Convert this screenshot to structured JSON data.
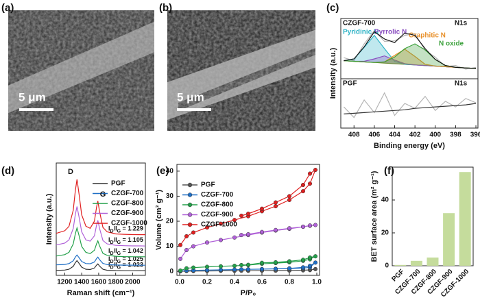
{
  "panels": [
    {
      "label": "(a)",
      "scale_bar": "5 μm"
    },
    {
      "label": "(b)",
      "scale_bar": "5 μm"
    }
  ],
  "chart_data": [
    {
      "type": "line",
      "panel": "(c)",
      "sample": "CZGF-700",
      "region": "N1s",
      "ylabel": "Intensity (a.u.)",
      "x": [
        409,
        408,
        407,
        406,
        405,
        404,
        403,
        402,
        401,
        400,
        399,
        398,
        397,
        396
      ],
      "xlim": [
        409.3,
        395.8
      ],
      "ylim": [
        0,
        100
      ],
      "series": [
        {
          "color": "#b5b5b5",
          "values": [
            35,
            30,
            58,
            80,
            62,
            63,
            72,
            75,
            47,
            36,
            20,
            22,
            16,
            19
          ]
        },
        {
          "color": "#6b8e23",
          "values": [
            30,
            29,
            28,
            27,
            26,
            25,
            24,
            23,
            22,
            21,
            20,
            19,
            18,
            17
          ]
        },
        {
          "name": "Pyridinic N",
          "color": "#2fb3c6",
          "fill": true,
          "values": [
            30,
            33,
            52,
            72,
            50,
            29,
            24,
            23,
            22,
            21,
            20,
            19,
            18,
            17
          ]
        },
        {
          "name": "Pyrrolic N",
          "color": "#8a4fc0",
          "fill": true,
          "values": [
            30,
            29,
            29,
            33,
            38,
            31,
            25,
            23,
            22,
            21,
            20,
            19,
            18,
            17
          ]
        },
        {
          "name": "Graphitic N",
          "color": "#e8902a",
          "fill": true,
          "values": [
            30,
            29,
            28,
            27,
            28,
            39,
            49,
            37,
            24,
            21,
            20,
            19,
            18,
            17
          ]
        },
        {
          "name": "N oxide",
          "color": "#3aa03a",
          "fill": true,
          "values": [
            30,
            29,
            28,
            27,
            28,
            36,
            50,
            58,
            48,
            32,
            22,
            19,
            18,
            17
          ]
        },
        {
          "color": "#111111",
          "values": [
            30,
            33,
            53,
            78,
            66,
            60,
            76,
            72,
            50,
            32,
            22,
            19,
            18,
            17
          ]
        }
      ]
    },
    {
      "type": "line",
      "sample": "PGF",
      "region": "N1s",
      "xlabel": "Binding energy (eV)",
      "x": [
        409,
        408,
        407,
        406,
        405,
        404,
        403,
        402,
        401,
        400,
        399,
        398,
        397,
        396
      ],
      "xlim": [
        409.3,
        395.8
      ],
      "ylim": [
        0,
        70
      ],
      "xticks": [
        408,
        406,
        404,
        402,
        400,
        398,
        396
      ],
      "series": [
        {
          "color": "#b5b5b5",
          "values": [
            30,
            15,
            40,
            22,
            50,
            18,
            35,
            28,
            45,
            25,
            38,
            30,
            42,
            36
          ]
        },
        {
          "color": "#333333",
          "values": [
            20,
            21,
            22,
            23,
            24,
            25,
            26,
            28,
            29,
            30,
            31,
            32,
            33,
            35
          ]
        }
      ]
    },
    {
      "type": "line",
      "panel": "(d)",
      "xlabel": "Raman shift (cm⁻¹)",
      "ylabel": "Intensity (a.u.)",
      "legend": "upper right",
      "annotations": [
        "D",
        "G"
      ],
      "x": [
        1100,
        1200,
        1250,
        1300,
        1325,
        1345,
        1370,
        1400,
        1450,
        1500,
        1550,
        1575,
        1590,
        1610,
        1650,
        1700,
        1800,
        1900,
        2000,
        2100,
        2150
      ],
      "xlim": [
        1100,
        2150
      ],
      "ylim": [
        0,
        100
      ],
      "xticks": [
        1200,
        1400,
        1600,
        1800,
        2000
      ],
      "series": [
        {
          "name": "PGF",
          "color": "#333333",
          "ratio_label": "ID/IG = 1.023",
          "values": [
            4.3,
            4.7,
            5.4,
            8.0,
            11.3,
            13.1,
            10.6,
            7.3,
            5.4,
            5.2,
            6.5,
            9.1,
            10.2,
            8.3,
            5.4,
            4.5,
            4.2,
            4.1,
            4.1,
            4,
            4
          ]
        },
        {
          "name": "CZGF-700",
          "color": "#1f6fc5",
          "ratio_label": "ID/IG = 1.025",
          "values": [
            9.3,
            9.7,
            10.4,
            13.0,
            16.3,
            18.1,
            15.6,
            12.3,
            10.5,
            10.3,
            11.9,
            14.9,
            16.2,
            14.0,
            10.6,
            9.6,
            9.2,
            9.1,
            9.1,
            9,
            9
          ]
        },
        {
          "name": "CZGF-800",
          "color": "#23a04a",
          "ratio_label": "ID/IG = 1.042",
          "values": [
            17.2,
            18.4,
            20.5,
            27.9,
            37.1,
            42.2,
            35.1,
            25.8,
            20.4,
            19.4,
            22.3,
            28.0,
            30.7,
            26.4,
            19.6,
            17.8,
            17.0,
            16.7,
            16.6,
            16.6,
            16.5
          ]
        },
        {
          "name": "CZGF-900",
          "color": "#b061d8",
          "ratio_label": "ID/IG = 1.105",
          "values": [
            27.0,
            28.7,
            31.5,
            41.7,
            54.3,
            61.3,
            51.6,
            38.8,
            31.5,
            30.4,
            35.2,
            44.6,
            48.9,
            42.0,
            31.0,
            28.0,
            26.7,
            26.4,
            26.2,
            26.2,
            26.1
          ]
        },
        {
          "name": "CZGF-1000",
          "color": "#e02020",
          "ratio_label": "ID/IG = 1.229",
          "values": [
            37.4,
            39.7,
            43.6,
            57.9,
            75.6,
            85.4,
            71.8,
            53.9,
            43.7,
            41.9,
            48.3,
            60.6,
            66.3,
            57.1,
            42.6,
            38.7,
            36.9,
            36.5,
            36.3,
            36.2,
            36.2
          ]
        }
      ]
    },
    {
      "type": "line",
      "panel": "(e)",
      "marker": "circle",
      "xlabel": "P/P₀",
      "ylabel": "Volume (cm³ g⁻¹)",
      "legend": "upper left",
      "x": [
        0.005,
        0.05,
        0.1,
        0.2,
        0.3,
        0.4,
        0.5,
        0.6,
        0.7,
        0.8,
        0.9,
        0.95,
        0.99,
        0.95,
        0.9,
        0.8,
        0.7,
        0.6,
        0.5,
        0.45
      ],
      "xlim": [
        -0.02,
        1.02
      ],
      "ylim": [
        -1.6,
        42.7
      ],
      "xticks": [
        {
          "value": 0,
          "label": "0.0"
        },
        0.2,
        0.4,
        0.6,
        0.8,
        {
          "value": 1,
          "label": "1.0"
        }
      ],
      "yticks": [
        0,
        10,
        20,
        30,
        40
      ],
      "series": [
        {
          "name": "PGF",
          "color": "#555555",
          "values": [
            0,
            0.1,
            0.1,
            0.15,
            0.2,
            0.2,
            0.25,
            0.3,
            0.3,
            0.35,
            0.4,
            0.5,
            0.9,
            0.6,
            0.45,
            0.38,
            0.32,
            0.3,
            0.25,
            0.25
          ]
        },
        {
          "name": "CZGF-700",
          "color": "#1f6fc5",
          "values": [
            0.1,
            0.3,
            0.4,
            0.5,
            0.6,
            0.7,
            0.8,
            0.9,
            1,
            1.1,
            1.3,
            1.6,
            3.5,
            2.2,
            1.6,
            1.2,
            1,
            0.9,
            0.8,
            0.8
          ]
        },
        {
          "name": "CZGF-800",
          "color": "#23a04a",
          "values": [
            0.3,
            1.2,
            1.5,
            1.8,
            2,
            2.2,
            2.5,
            3,
            3.3,
            3.6,
            4.2,
            4.8,
            6,
            5.5,
            4.6,
            4,
            3.6,
            3.4,
            2.6,
            2.5
          ]
        },
        {
          "name": "CZGF-900",
          "color": "#b061d8",
          "values": [
            5,
            8.5,
            10,
            11.5,
            12.5,
            13.5,
            14.5,
            15.5,
            16.3,
            17,
            17.8,
            18.2,
            18.5,
            18.3,
            17.8,
            17.2,
            16.5,
            15.7,
            14.8,
            14.5
          ]
        },
        {
          "name": "CZGF-1000",
          "color": "#e02020",
          "values": [
            10.5,
            14,
            15.5,
            17.5,
            19,
            20.5,
            22,
            24,
            26,
            28.5,
            32,
            35,
            40.5,
            39,
            34.5,
            30,
            27.5,
            25,
            23,
            22.2
          ]
        }
      ]
    },
    {
      "type": "bar",
      "panel": "(f)",
      "ylabel": "BET surface area (m² g⁻¹)",
      "color": "#c5dc9c",
      "categories": [
        "PGF",
        "CZGF-700",
        "CZGF-800",
        "CZGF-900",
        "CZGF-1000"
      ],
      "values": [
        0.5,
        3,
        5,
        32,
        57
      ],
      "ylim": [
        0,
        60
      ],
      "yticks": [
        0,
        20,
        40
      ]
    }
  ]
}
